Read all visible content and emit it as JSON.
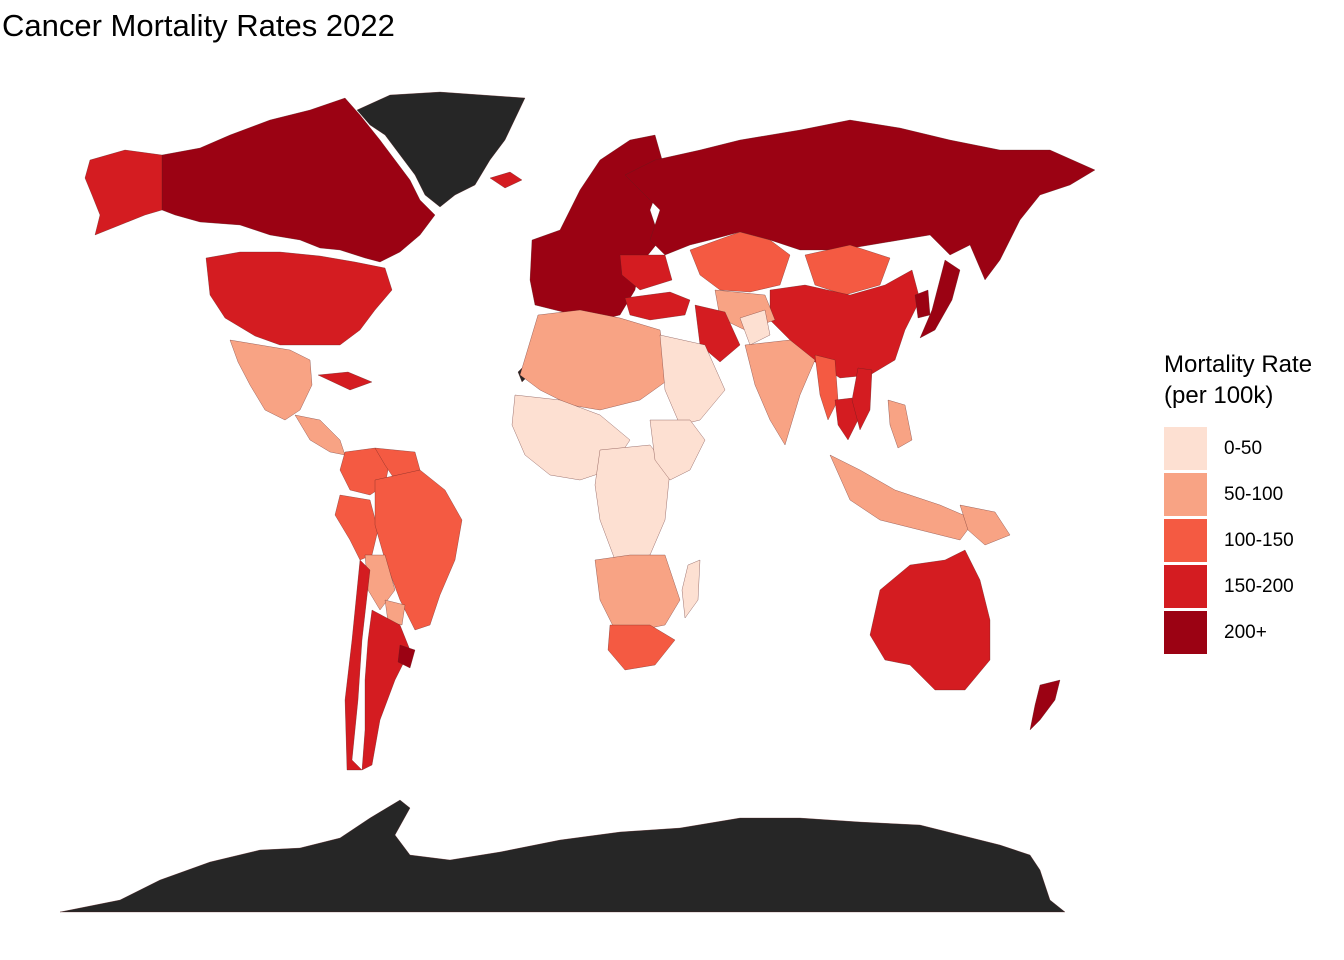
{
  "title": "Cancer Mortality Rates 2022",
  "legend": {
    "title": "Mortality Rate\n(per 100k)",
    "bins": [
      {
        "label": "0-50",
        "color": "#fde0d2"
      },
      {
        "label": "50-100",
        "color": "#f8a384"
      },
      {
        "label": "100-150",
        "color": "#f45a42"
      },
      {
        "label": "150-200",
        "color": "#d41c21"
      },
      {
        "label": "200+",
        "color": "#9b0213"
      }
    ],
    "no_data_color": "#262626"
  },
  "regions": [
    {
      "name": "Greenland",
      "bin": "no-data"
    },
    {
      "name": "Antarctica",
      "bin": "no-data"
    },
    {
      "name": "Western Sahara",
      "bin": "no-data"
    },
    {
      "name": "Canada",
      "bin": "200+"
    },
    {
      "name": "Alaska",
      "bin": "150-200"
    },
    {
      "name": "United States",
      "bin": "150-200"
    },
    {
      "name": "Mexico",
      "bin": "50-100"
    },
    {
      "name": "Central America",
      "bin": "50-100"
    },
    {
      "name": "Cuba",
      "bin": "150-200"
    },
    {
      "name": "Colombia",
      "bin": "100-150"
    },
    {
      "name": "Venezuela",
      "bin": "100-150"
    },
    {
      "name": "Peru",
      "bin": "100-150"
    },
    {
      "name": "Brazil",
      "bin": "100-150"
    },
    {
      "name": "Bolivia",
      "bin": "50-100"
    },
    {
      "name": "Paraguay",
      "bin": "50-100"
    },
    {
      "name": "Argentina",
      "bin": "150-200"
    },
    {
      "name": "Chile",
      "bin": "150-200"
    },
    {
      "name": "Uruguay",
      "bin": "200+"
    },
    {
      "name": "Iceland",
      "bin": "150-200"
    },
    {
      "name": "Europe",
      "bin": "200+"
    },
    {
      "name": "Russia",
      "bin": "200+"
    },
    {
      "name": "Ukraine",
      "bin": "150-200"
    },
    {
      "name": "Turkey",
      "bin": "150-200"
    },
    {
      "name": "Kazakhstan",
      "bin": "100-150"
    },
    {
      "name": "Mongolia",
      "bin": "100-150"
    },
    {
      "name": "China",
      "bin": "150-200"
    },
    {
      "name": "Korea",
      "bin": "200+"
    },
    {
      "name": "Japan",
      "bin": "200+"
    },
    {
      "name": "Central Asia",
      "bin": "50-100"
    },
    {
      "name": "Iran",
      "bin": "150-200"
    },
    {
      "name": "Afghanistan",
      "bin": "0-50"
    },
    {
      "name": "India",
      "bin": "50-100"
    },
    {
      "name": "Myanmar",
      "bin": "100-150"
    },
    {
      "name": "Thailand",
      "bin": "150-200"
    },
    {
      "name": "Vietnam",
      "bin": "150-200"
    },
    {
      "name": "Indonesia",
      "bin": "50-100"
    },
    {
      "name": "Philippines",
      "bin": "50-100"
    },
    {
      "name": "Papua New Guinea",
      "bin": "50-100"
    },
    {
      "name": "Australia",
      "bin": "150-200"
    },
    {
      "name": "New Zealand",
      "bin": "200+"
    },
    {
      "name": "North Africa",
      "bin": "50-100"
    },
    {
      "name": "Arabian Peninsula",
      "bin": "0-50"
    },
    {
      "name": "West Africa",
      "bin": "0-50"
    },
    {
      "name": "Central Africa",
      "bin": "0-50"
    },
    {
      "name": "East Africa",
      "bin": "0-50"
    },
    {
      "name": "Southern Africa",
      "bin": "50-100"
    },
    {
      "name": "South Africa",
      "bin": "100-150"
    },
    {
      "name": "Madagascar",
      "bin": "0-50"
    }
  ]
}
